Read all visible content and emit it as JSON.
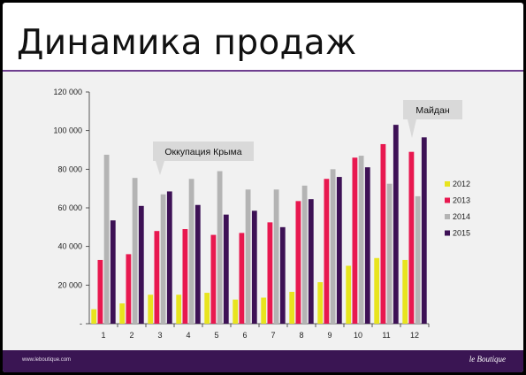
{
  "slide": {
    "title": "Динамика продаж",
    "footer_url": "www.leboutique.com",
    "footer_brand": "le Boutique"
  },
  "colors": {
    "background": "#f1f1f1",
    "title_rule": "#6e3f8f",
    "footer": "#3a1553"
  },
  "chart_data": {
    "type": "bar",
    "categories": [
      "1",
      "2",
      "3",
      "4",
      "5",
      "6",
      "7",
      "8",
      "9",
      "10",
      "11",
      "12"
    ],
    "ylim": [
      0,
      120000
    ],
    "yticks": [
      "-",
      "20 000",
      "40 000",
      "60 000",
      "80 000",
      "100 000",
      "120 000"
    ],
    "grid": false,
    "legend_position": "right",
    "series": [
      {
        "name": "2012",
        "color": "#e8e41e",
        "values": [
          7500,
          10500,
          15000,
          15000,
          16000,
          12500,
          13500,
          16500,
          21500,
          30000,
          34000,
          33000
        ]
      },
      {
        "name": "2013",
        "color": "#e8184f",
        "values": [
          33000,
          36000,
          48000,
          49000,
          46000,
          47000,
          52500,
          63500,
          75000,
          86000,
          93000,
          89000
        ]
      },
      {
        "name": "2014",
        "color": "#b4b4b4",
        "values": [
          87500,
          75500,
          67000,
          75000,
          79000,
          69500,
          69500,
          71500,
          80000,
          87000,
          72500,
          66000
        ]
      },
      {
        "name": "2015",
        "color": "#3d1155",
        "values": [
          53500,
          61000,
          68500,
          61500,
          56500,
          58500,
          50000,
          64500,
          76000,
          81000,
          103000,
          96500
        ]
      }
    ],
    "annotations": [
      {
        "text": "Оккупация Крыма",
        "category": "3"
      },
      {
        "text": "Майдан",
        "category": "12"
      }
    ]
  }
}
